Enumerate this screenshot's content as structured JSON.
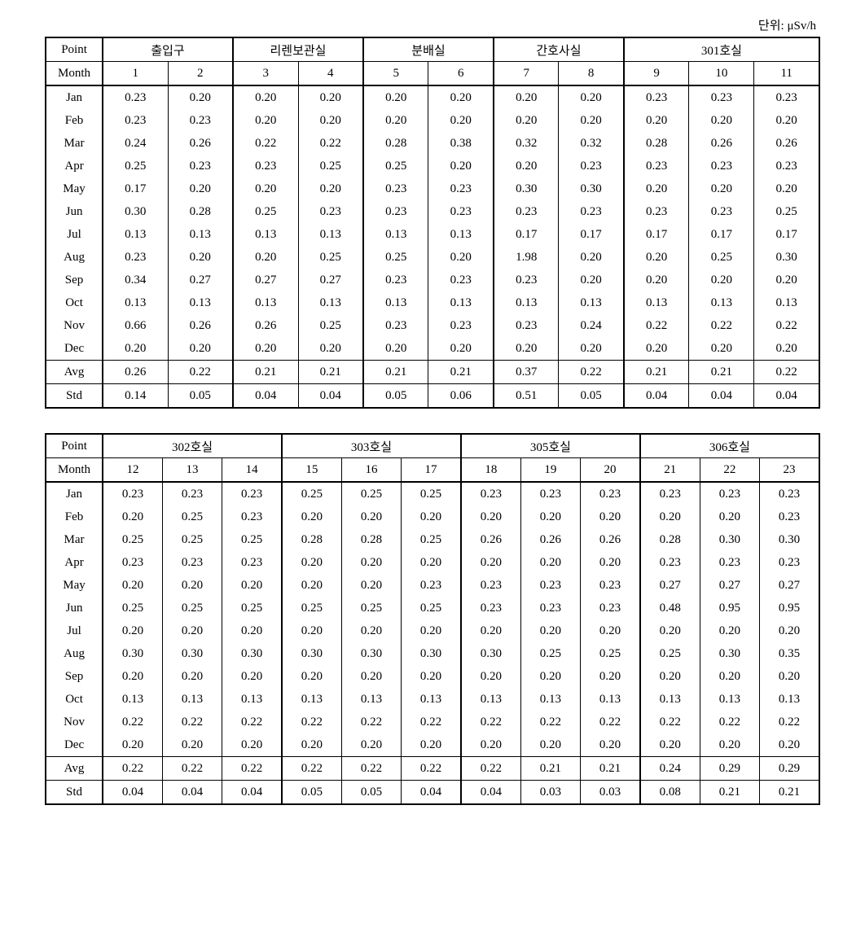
{
  "unit_label": "단위: μSv/h",
  "labels": {
    "point": "Point",
    "month": "Month",
    "avg": "Avg",
    "std": "Std"
  },
  "months": [
    "Jan",
    "Feb",
    "Mar",
    "Apr",
    "May",
    "Jun",
    "Jul",
    "Aug",
    "Sep",
    "Oct",
    "Nov",
    "Dec"
  ],
  "table1": {
    "groups": [
      {
        "name": "출입구",
        "cols": [
          "1",
          "2"
        ]
      },
      {
        "name": "리렌보관실",
        "cols": [
          "3",
          "4"
        ]
      },
      {
        "name": "분배실",
        "cols": [
          "5",
          "6"
        ]
      },
      {
        "name": "간호사실",
        "cols": [
          "7",
          "8"
        ]
      },
      {
        "name": "301호실",
        "cols": [
          "9",
          "10",
          "11"
        ]
      }
    ],
    "data": {
      "Jan": [
        "0.23",
        "0.20",
        "0.20",
        "0.20",
        "0.20",
        "0.20",
        "0.20",
        "0.20",
        "0.23",
        "0.23",
        "0.23"
      ],
      "Feb": [
        "0.23",
        "0.23",
        "0.20",
        "0.20",
        "0.20",
        "0.20",
        "0.20",
        "0.20",
        "0.20",
        "0.20",
        "0.20"
      ],
      "Mar": [
        "0.24",
        "0.26",
        "0.22",
        "0.22",
        "0.28",
        "0.38",
        "0.32",
        "0.32",
        "0.28",
        "0.26",
        "0.26"
      ],
      "Apr": [
        "0.25",
        "0.23",
        "0.23",
        "0.25",
        "0.25",
        "0.20",
        "0.20",
        "0.23",
        "0.23",
        "0.23",
        "0.23"
      ],
      "May": [
        "0.17",
        "0.20",
        "0.20",
        "0.20",
        "0.23",
        "0.23",
        "0.30",
        "0.30",
        "0.20",
        "0.20",
        "0.20"
      ],
      "Jun": [
        "0.30",
        "0.28",
        "0.25",
        "0.23",
        "0.23",
        "0.23",
        "0.23",
        "0.23",
        "0.23",
        "0.23",
        "0.25"
      ],
      "Jul": [
        "0.13",
        "0.13",
        "0.13",
        "0.13",
        "0.13",
        "0.13",
        "0.17",
        "0.17",
        "0.17",
        "0.17",
        "0.17"
      ],
      "Aug": [
        "0.23",
        "0.20",
        "0.20",
        "0.25",
        "0.25",
        "0.20",
        "1.98",
        "0.20",
        "0.20",
        "0.25",
        "0.30"
      ],
      "Sep": [
        "0.34",
        "0.27",
        "0.27",
        "0.27",
        "0.23",
        "0.23",
        "0.23",
        "0.20",
        "0.20",
        "0.20",
        "0.20"
      ],
      "Oct": [
        "0.13",
        "0.13",
        "0.13",
        "0.13",
        "0.13",
        "0.13",
        "0.13",
        "0.13",
        "0.13",
        "0.13",
        "0.13"
      ],
      "Nov": [
        "0.66",
        "0.26",
        "0.26",
        "0.25",
        "0.23",
        "0.23",
        "0.23",
        "0.24",
        "0.22",
        "0.22",
        "0.22"
      ],
      "Dec": [
        "0.20",
        "0.20",
        "0.20",
        "0.20",
        "0.20",
        "0.20",
        "0.20",
        "0.20",
        "0.20",
        "0.20",
        "0.20"
      ]
    },
    "avg": [
      "0.26",
      "0.22",
      "0.21",
      "0.21",
      "0.21",
      "0.21",
      "0.37",
      "0.22",
      "0.21",
      "0.21",
      "0.22"
    ],
    "std": [
      "0.14",
      "0.05",
      "0.04",
      "0.04",
      "0.05",
      "0.06",
      "0.51",
      "0.05",
      "0.04",
      "0.04",
      "0.04"
    ]
  },
  "table2": {
    "groups": [
      {
        "name": "302호실",
        "cols": [
          "12",
          "13",
          "14"
        ]
      },
      {
        "name": "303호실",
        "cols": [
          "15",
          "16",
          "17"
        ]
      },
      {
        "name": "305호실",
        "cols": [
          "18",
          "19",
          "20"
        ]
      },
      {
        "name": "306호실",
        "cols": [
          "21",
          "22",
          "23"
        ]
      }
    ],
    "data": {
      "Jan": [
        "0.23",
        "0.23",
        "0.23",
        "0.25",
        "0.25",
        "0.25",
        "0.23",
        "0.23",
        "0.23",
        "0.23",
        "0.23",
        "0.23"
      ],
      "Feb": [
        "0.20",
        "0.25",
        "0.23",
        "0.20",
        "0.20",
        "0.20",
        "0.20",
        "0.20",
        "0.20",
        "0.20",
        "0.20",
        "0.23"
      ],
      "Mar": [
        "0.25",
        "0.25",
        "0.25",
        "0.28",
        "0.28",
        "0.25",
        "0.26",
        "0.26",
        "0.26",
        "0.28",
        "0.30",
        "0.30"
      ],
      "Apr": [
        "0.23",
        "0.23",
        "0.23",
        "0.20",
        "0.20",
        "0.20",
        "0.20",
        "0.20",
        "0.20",
        "0.23",
        "0.23",
        "0.23"
      ],
      "May": [
        "0.20",
        "0.20",
        "0.20",
        "0.20",
        "0.20",
        "0.23",
        "0.23",
        "0.23",
        "0.23",
        "0.27",
        "0.27",
        "0.27"
      ],
      "Jun": [
        "0.25",
        "0.25",
        "0.25",
        "0.25",
        "0.25",
        "0.25",
        "0.23",
        "0.23",
        "0.23",
        "0.48",
        "0.95",
        "0.95"
      ],
      "Jul": [
        "0.20",
        "0.20",
        "0.20",
        "0.20",
        "0.20",
        "0.20",
        "0.20",
        "0.20",
        "0.20",
        "0.20",
        "0.20",
        "0.20"
      ],
      "Aug": [
        "0.30",
        "0.30",
        "0.30",
        "0.30",
        "0.30",
        "0.30",
        "0.30",
        "0.25",
        "0.25",
        "0.25",
        "0.30",
        "0.35"
      ],
      "Sep": [
        "0.20",
        "0.20",
        "0.20",
        "0.20",
        "0.20",
        "0.20",
        "0.20",
        "0.20",
        "0.20",
        "0.20",
        "0.20",
        "0.20"
      ],
      "Oct": [
        "0.13",
        "0.13",
        "0.13",
        "0.13",
        "0.13",
        "0.13",
        "0.13",
        "0.13",
        "0.13",
        "0.13",
        "0.13",
        "0.13"
      ],
      "Nov": [
        "0.22",
        "0.22",
        "0.22",
        "0.22",
        "0.22",
        "0.22",
        "0.22",
        "0.22",
        "0.22",
        "0.22",
        "0.22",
        "0.22"
      ],
      "Dec": [
        "0.20",
        "0.20",
        "0.20",
        "0.20",
        "0.20",
        "0.20",
        "0.20",
        "0.20",
        "0.20",
        "0.20",
        "0.20",
        "0.20"
      ]
    },
    "avg": [
      "0.22",
      "0.22",
      "0.22",
      "0.22",
      "0.22",
      "0.22",
      "0.22",
      "0.21",
      "0.21",
      "0.24",
      "0.29",
      "0.29"
    ],
    "std": [
      "0.04",
      "0.04",
      "0.04",
      "0.05",
      "0.05",
      "0.04",
      "0.04",
      "0.03",
      "0.03",
      "0.08",
      "0.21",
      "0.21"
    ]
  }
}
